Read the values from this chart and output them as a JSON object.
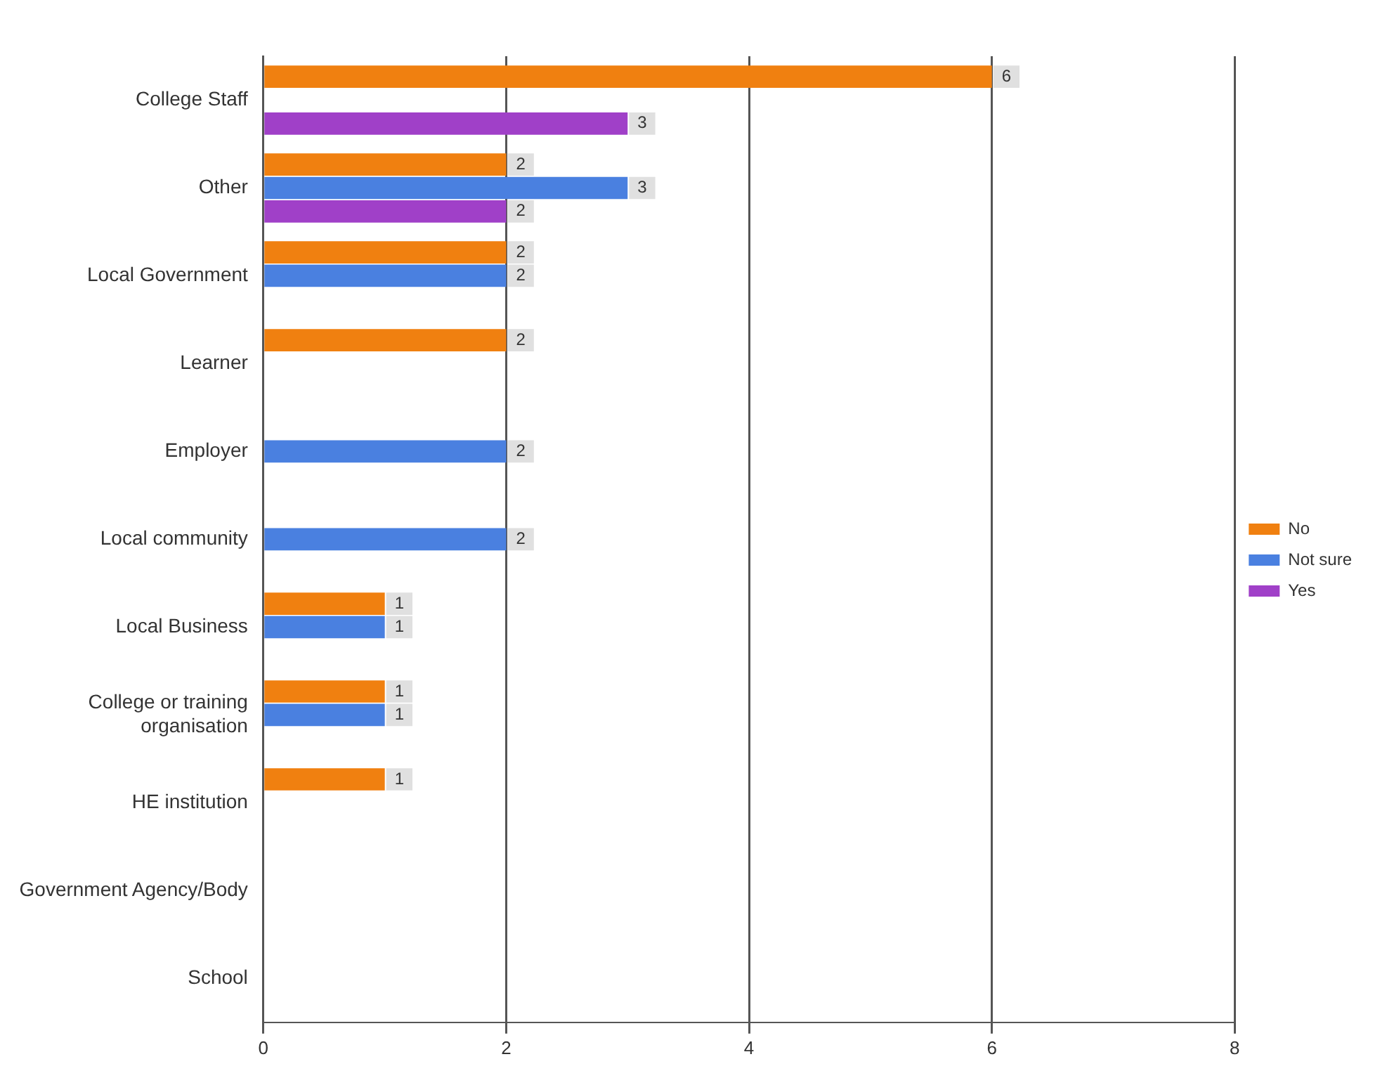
{
  "chart_data": {
    "type": "bar",
    "orientation": "horizontal",
    "categories": [
      "College Staff",
      "Other",
      "Local Government",
      "Learner",
      "Employer",
      "Local community",
      "Local Business",
      "College or training organisation",
      "HE institution",
      "Government Agency/Body",
      "School"
    ],
    "series": [
      {
        "name": "No",
        "color": "#f08010",
        "values": [
          6,
          2,
          2,
          2,
          null,
          null,
          1,
          1,
          1,
          null,
          null
        ]
      },
      {
        "name": "Not sure",
        "color": "#4a80e0",
        "values": [
          null,
          3,
          2,
          null,
          2,
          2,
          1,
          1,
          null,
          null,
          null
        ]
      },
      {
        "name": "Yes",
        "color": "#a040c8",
        "values": [
          3,
          2,
          null,
          null,
          null,
          null,
          null,
          null,
          null,
          null,
          null
        ]
      }
    ],
    "xlim": [
      0,
      8
    ],
    "xticks": [
      0,
      2,
      4,
      6,
      8
    ],
    "grid": "x",
    "legend": "right",
    "data_labels": true
  }
}
